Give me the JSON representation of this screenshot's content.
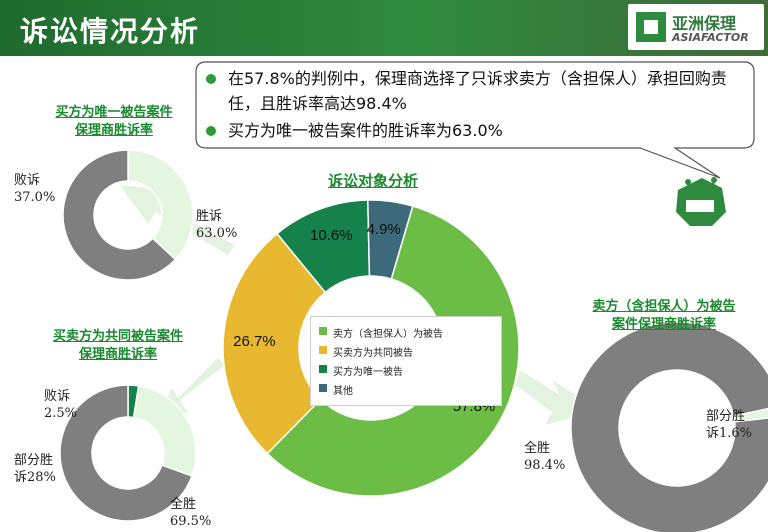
{
  "header": {
    "title": "诉讼情况分析"
  },
  "logo": {
    "name_cn": "亚洲保理",
    "name_en": "ASIAFACTOR"
  },
  "colors": {
    "green": "#6cbd45",
    "gold": "#e8b930",
    "dark_green": "#14824a",
    "teal": "#3d6a7a",
    "gray": "#7f7f7f",
    "light_green": "#e4f5e0",
    "title_green": "#1a8a2e"
  },
  "callout": {
    "bullets": [
      "在57.8%的判例中，保理商选择了只诉求卖方（含担保人）承担回购责任，且胜诉率高达98.4%",
      "买方为唯一被告案件的胜诉率为63.0%"
    ]
  },
  "chart_data": [
    {
      "type": "pie",
      "title": "诉讼对象分析",
      "donut": true,
      "slices": [
        {
          "label": "卖方（含担保人）为被告",
          "value": 57.8,
          "value_label": "57.8%",
          "color": "#6cbd45"
        },
        {
          "label": "买卖方为共同被告",
          "value": 26.7,
          "value_label": "26.7%",
          "color": "#e8b930"
        },
        {
          "label": "买方为唯一被告",
          "value": 10.6,
          "value_label": "10.6%",
          "color": "#14824a"
        },
        {
          "label": "其他",
          "value": 4.9,
          "value_label": "4.9%",
          "color": "#3d6a7a"
        }
      ],
      "legend": "center"
    },
    {
      "type": "pie",
      "title": "买方为唯一被告案件保理商胜诉率",
      "donut": true,
      "slices": [
        {
          "label": "败诉",
          "value": 37.0,
          "value_label": "37.0%",
          "color": "#e4f5e0"
        },
        {
          "label": "胜诉",
          "value": 63.0,
          "value_label": "63.0%",
          "color": "#7f7f7f"
        }
      ]
    },
    {
      "type": "pie",
      "title": "买卖方为共同被告案件保理商胜诉率",
      "donut": true,
      "slices": [
        {
          "label": "败诉",
          "value": 2.5,
          "value_label": "2.5%",
          "color": "#14824a"
        },
        {
          "label": "部分胜诉",
          "value": 28.0,
          "value_label": "28%",
          "color": "#e4f5e0"
        },
        {
          "label": "全胜",
          "value": 69.5,
          "value_label": "69.5%",
          "color": "#7f7f7f"
        }
      ]
    },
    {
      "type": "pie",
      "title": "卖方（含担保人）为被告案件保理商胜诉率",
      "donut": true,
      "slices": [
        {
          "label": "部分胜诉",
          "value": 1.6,
          "value_label": "1.6%",
          "color": "#e4f5e0"
        },
        {
          "label": "全胜",
          "value": 98.4,
          "value_label": "98.4%",
          "color": "#7f7f7f"
        }
      ]
    }
  ],
  "labels": {
    "tl_title_1": "买方为唯一被告案件",
    "tl_title_2": "保理商胜诉率",
    "tl_lose": "败诉",
    "tl_lose_pct": "37.0%",
    "tl_win": "胜诉",
    "tl_win_pct": "63.0%",
    "bl_title_1": "买卖方为共同被告案件",
    "bl_title_2": "保理商胜诉率",
    "bl_lose": "败诉",
    "bl_lose_pct": "2.5%",
    "bl_part_1": "部分胜",
    "bl_part_2": "诉28%",
    "bl_full": "全胜",
    "bl_full_pct": "69.5%",
    "r_title_1": "卖方（含担保人）为被告",
    "r_title_2": "案件保理商胜诉率",
    "r_part_1": "部分胜",
    "r_part_2": "诉1.6%",
    "r_full": "全胜",
    "r_full_pct": "98.4%"
  }
}
